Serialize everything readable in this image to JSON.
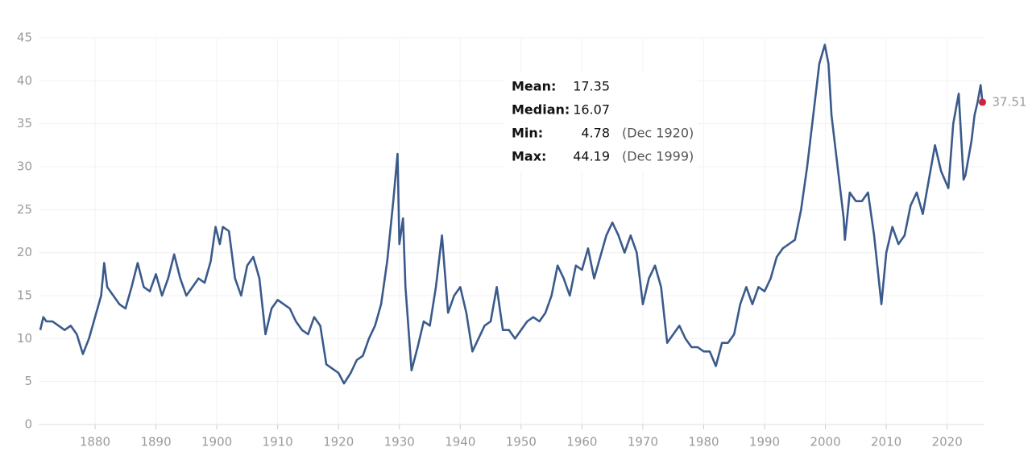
{
  "chart_data": {
    "type": "line",
    "x": [
      1871,
      1871.5,
      1872,
      1873,
      1874,
      1875,
      1876,
      1877,
      1878,
      1879,
      1880,
      1881,
      1881.5,
      1882,
      1883,
      1884,
      1885,
      1886,
      1887,
      1888,
      1889,
      1890,
      1891,
      1892,
      1893,
      1894,
      1895,
      1896,
      1897,
      1898,
      1899,
      1899.8,
      1900.5,
      1901,
      1902,
      1903,
      1904,
      1905,
      1906,
      1907,
      1908,
      1909,
      1910,
      1911,
      1912,
      1913,
      1914,
      1915,
      1916,
      1917,
      1918,
      1919,
      1920,
      1920.9,
      1922,
      1923,
      1924,
      1925,
      1926,
      1927,
      1928,
      1929,
      1929.7,
      1930,
      1930.6,
      1931,
      1932,
      1933,
      1934,
      1935,
      1936,
      1937,
      1938,
      1939,
      1940,
      1941,
      1942,
      1943,
      1944,
      1945,
      1946,
      1947,
      1948,
      1949,
      1950,
      1951,
      1952,
      1953,
      1954,
      1955,
      1956,
      1957,
      1958,
      1959,
      1960,
      1961,
      1962,
      1963,
      1964,
      1965,
      1966,
      1967,
      1968,
      1969,
      1970,
      1971,
      1972,
      1973,
      1974,
      1975,
      1976,
      1977,
      1978,
      1979,
      1980,
      1981,
      1982,
      1983,
      1984,
      1985,
      1986,
      1987,
      1988,
      1989,
      1990,
      1991,
      1992,
      1993,
      1994,
      1995,
      1996,
      1997,
      1998,
      1999,
      1999.9,
      2000.5,
      2001,
      2002,
      2003,
      2003.2,
      2004,
      2005,
      2006,
      2007,
      2008,
      2009.2,
      2010,
      2011,
      2012,
      2013,
      2014,
      2015,
      2016,
      2017,
      2018,
      2019,
      2020.2,
      2021,
      2021.9,
      2022.7,
      2023,
      2024,
      2024.5,
      2025,
      2025.5,
      2025.8
    ],
    "series": [
      {
        "color": "#3a5a8c",
        "values": [
          11,
          12.5,
          12,
          12,
          11.5,
          11,
          11.5,
          10.5,
          8.2,
          10,
          12.5,
          15,
          18.8,
          16,
          15,
          14,
          13.5,
          16,
          18.8,
          16,
          15.5,
          17.5,
          15,
          17,
          19.8,
          17,
          15,
          16,
          17,
          16.5,
          19,
          23,
          21,
          23,
          22.5,
          17,
          15,
          18.5,
          19.5,
          17,
          10.5,
          13.5,
          14.5,
          14,
          13.5,
          12,
          11,
          10.5,
          12.5,
          11.5,
          7,
          6.5,
          6,
          4.78,
          6,
          7.5,
          8,
          10,
          11.5,
          14,
          19,
          26,
          31.5,
          21,
          24,
          16,
          6.3,
          9,
          12,
          11.5,
          16,
          22,
          13,
          15,
          16,
          13,
          8.5,
          10,
          11.5,
          12,
          16,
          11,
          11,
          10,
          11,
          12,
          12.5,
          12,
          13,
          15,
          18.5,
          17,
          15,
          18.5,
          18,
          20.5,
          17,
          19.5,
          22,
          23.5,
          22,
          20,
          22,
          20,
          14,
          17,
          18.5,
          16,
          9.5,
          10.5,
          11.5,
          10,
          9,
          9,
          8.5,
          8.5,
          6.8,
          9.5,
          9.5,
          10.5,
          14,
          16,
          14,
          16,
          15.5,
          17,
          19.5,
          20.5,
          21,
          21.5,
          25,
          30,
          36,
          42,
          44.19,
          42,
          36,
          30,
          24,
          21.5,
          27,
          26,
          26,
          27,
          22,
          14,
          20,
          23,
          21,
          22,
          25.5,
          27,
          24.5,
          28.5,
          32.5,
          29.5,
          27.5,
          35,
          38.5,
          28.5,
          29,
          33,
          36,
          37.5,
          39.5,
          37.51
        ]
      }
    ],
    "xlim": [
      1871,
      2026
    ],
    "ylim": [
      0,
      45
    ],
    "xticks": [
      1880,
      1890,
      1900,
      1910,
      1920,
      1930,
      1940,
      1950,
      1960,
      1970,
      1980,
      1990,
      2000,
      2010,
      2020
    ],
    "yticks": [
      0,
      5,
      10,
      15,
      20,
      25,
      30,
      35,
      40,
      45
    ],
    "grid": true,
    "last_point_color": "#d0223c",
    "stats": [
      {
        "label": "Mean:",
        "value": "17.35"
      },
      {
        "label": "Median:",
        "value": "16.07"
      },
      {
        "label": "Min:",
        "value": "4.78",
        "note": "(Dec 1920)"
      },
      {
        "label": "Max:",
        "value": "44.19",
        "note": "(Dec 1999)"
      }
    ]
  }
}
